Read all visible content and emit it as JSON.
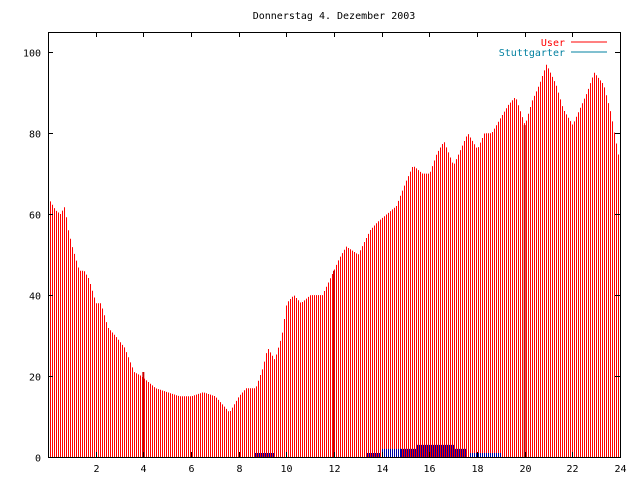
{
  "chart_data": {
    "type": "bar",
    "title": "Donnerstag 4. Dezember 2003",
    "xlabel": "",
    "ylabel": "",
    "xlim": [
      0,
      24
    ],
    "ylim": [
      0,
      105
    ],
    "x_ticks": [
      2,
      4,
      6,
      8,
      10,
      12,
      14,
      16,
      18,
      20,
      22,
      24
    ],
    "y_ticks": [
      0,
      20,
      40,
      60,
      80,
      100
    ],
    "grid": false,
    "legend_position": "top-right",
    "series": [
      {
        "name": "User",
        "color": "#ff0000",
        "style": "impulses",
        "anchors_x": [
          0,
          0.3,
          0.5,
          0.7,
          0.8,
          1.0,
          1.3,
          1.5,
          1.7,
          2.0,
          2.2,
          2.5,
          2.8,
          3.2,
          3.6,
          3.9,
          4.1,
          4.5,
          5.0,
          5.5,
          6.0,
          6.5,
          7.0,
          7.3,
          7.6,
          8.0,
          8.3,
          8.7,
          9.0,
          9.2,
          9.5,
          9.8,
          10.0,
          10.3,
          10.6,
          11.0,
          11.5,
          11.9,
          12.2,
          12.5,
          13.0,
          13.5,
          13.8,
          14.2,
          14.6,
          15.0,
          15.3,
          15.7,
          16.0,
          16.3,
          16.6,
          17.0,
          17.3,
          17.6,
          18.0,
          18.3,
          18.6,
          19.0,
          19.3,
          19.6,
          20.0,
          20.3,
          20.6,
          20.9,
          21.3,
          21.6,
          22.0,
          22.3,
          22.6,
          22.9,
          23.3,
          23.6,
          24.0
        ],
        "anchors_y": [
          64,
          61,
          60,
          62,
          57,
          52,
          46,
          46,
          44,
          38,
          38,
          32,
          30,
          27,
          21,
          20,
          19,
          17,
          16,
          15,
          15,
          16,
          15,
          13,
          11,
          15,
          17,
          17,
          22,
          27,
          24,
          30,
          38,
          40,
          38,
          40,
          40,
          45,
          49,
          52,
          50,
          56,
          58,
          60,
          62,
          68,
          72,
          70,
          70,
          75,
          78,
          72,
          76,
          80,
          76,
          80,
          80,
          84,
          87,
          89,
          82,
          88,
          92,
          97,
          92,
          86,
          82,
          86,
          90,
          95,
          92,
          85,
          72
        ],
        "highlight_x": [
          4.0,
          12.0,
          20.0
        ],
        "highlight_values": [
          21,
          46,
          82
        ]
      },
      {
        "name": "Stuttgarter",
        "color": "#0000a0",
        "style": "impulses",
        "segments": [
          {
            "x_start": 8.7,
            "x_end": 9.5,
            "value": 1
          },
          {
            "x_start": 13.4,
            "x_end": 13.9,
            "value": 1
          },
          {
            "x_start": 14.0,
            "x_end": 14.8,
            "value": 2
          },
          {
            "x_start": 14.8,
            "x_end": 15.5,
            "value": 2
          },
          {
            "x_start": 15.5,
            "x_end": 17.0,
            "value": 3
          },
          {
            "x_start": 17.0,
            "x_end": 17.5,
            "value": 2
          },
          {
            "x_start": 17.7,
            "x_end": 19.0,
            "value": 1
          }
        ]
      }
    ]
  }
}
